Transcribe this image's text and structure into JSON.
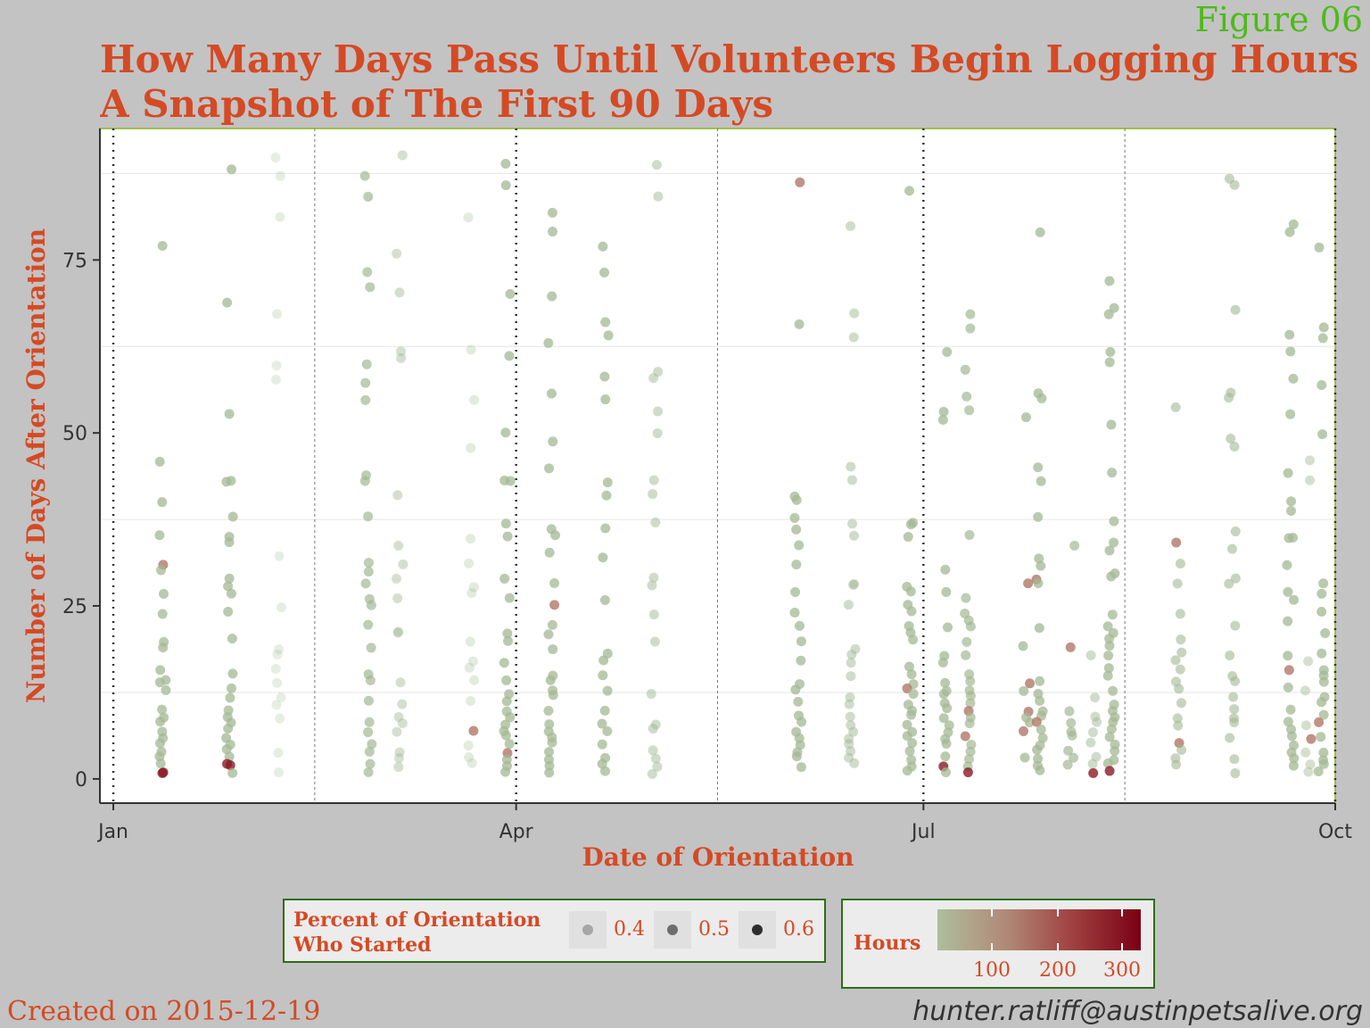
{
  "figure_label": "Figure 06",
  "title_line1": "How Many Days Pass Until Volunteers Begin Logging Hours",
  "title_line2": "A Snapshot of The First 90 Days",
  "footer": {
    "created": "Created on 2015-12-19",
    "email": "hunter.ratliff@austinpetsalive.org"
  },
  "legend_size": {
    "title_line1": "Percent of Orientation",
    "title_line2": "Who Started",
    "labels": [
      "0.4",
      "0.5",
      "0.6"
    ]
  },
  "legend_color": {
    "title": "Hours",
    "labels": [
      "100",
      "200",
      "300"
    ],
    "low_color": "#aebe9c",
    "high_color": "#7a0014"
  },
  "chart_data": {
    "type": "scatter",
    "xlabel": "Date of Orientation",
    "ylabel": "Number of Days After Orientation",
    "x_ticks": [
      "Jan",
      "Apr",
      "Jul",
      "Oct"
    ],
    "x_tick_dates": [
      "2015-01-01",
      "2015-04-01",
      "2015-07-01",
      "2015-10-01"
    ],
    "x_range": [
      "2014-12-29",
      "2015-10-01"
    ],
    "y_ticks": [
      0,
      25,
      50,
      75
    ],
    "y_range": [
      -3.5,
      94
    ],
    "grid": true,
    "month_start_lines": [
      "2015-01-01",
      "2015-04-01",
      "2015-07-01",
      "2015-10-01"
    ],
    "mid_quarter_lines": [
      "2015-02-15",
      "2015-05-16",
      "2015-08-15"
    ],
    "cohorts": [
      {
        "date": "2015-01-12",
        "alpha": 0.75,
        "days": [
          77,
          46,
          40,
          35,
          31,
          30,
          27,
          24,
          20,
          19,
          16,
          14,
          14,
          13,
          10,
          9,
          8,
          7,
          6,
          5,
          4,
          3,
          2,
          1,
          1
        ],
        "hot": [
          31,
          1
        ]
      },
      {
        "date": "2015-01-27",
        "alpha": 0.75,
        "days": [
          88,
          69,
          53,
          43,
          43,
          38,
          35,
          34,
          29,
          28,
          27,
          24,
          20,
          15,
          13,
          12,
          10,
          9,
          8,
          7,
          6,
          5,
          4,
          3,
          2,
          2,
          1
        ],
        "hot": [
          2
        ]
      },
      {
        "date": "2015-02-07",
        "alpha": 0.25,
        "days": [
          90,
          87,
          81,
          67,
          60,
          58,
          32,
          25,
          19,
          18,
          16,
          14,
          12,
          11,
          9,
          4,
          1
        ],
        "hot": []
      },
      {
        "date": "2015-02-27",
        "alpha": 0.7,
        "days": [
          87,
          84,
          73,
          71,
          60,
          57,
          55,
          44,
          43,
          38,
          31,
          30,
          28,
          26,
          25,
          22,
          19,
          15,
          14,
          11,
          8,
          7,
          5,
          4,
          2,
          1
        ],
        "hot": []
      },
      {
        "date": "2015-03-06",
        "alpha": 0.45,
        "days": [
          90,
          76,
          70,
          62,
          61,
          41,
          34,
          31,
          29,
          26,
          21,
          21,
          14,
          11,
          9,
          8,
          7,
          4,
          3,
          2
        ],
        "hot": []
      },
      {
        "date": "2015-03-22",
        "alpha": 0.3,
        "days": [
          81,
          62,
          55,
          48,
          35,
          31,
          28,
          27,
          20,
          17,
          16,
          14,
          11,
          7,
          5,
          3,
          2
        ],
        "hot": [
          7
        ]
      },
      {
        "date": "2015-03-30",
        "alpha": 0.75,
        "days": [
          89,
          86,
          70,
          61,
          50,
          43,
          43,
          37,
          35,
          29,
          26,
          21,
          20,
          17,
          14,
          12,
          11,
          10,
          9,
          8,
          7,
          6,
          5,
          4,
          3,
          2,
          1
        ],
        "hot": [
          4
        ]
      },
      {
        "date": "2015-04-09",
        "alpha": 0.75,
        "days": [
          82,
          79,
          70,
          63,
          56,
          49,
          45,
          36,
          35,
          33,
          28,
          25,
          22,
          21,
          19,
          15,
          14,
          13,
          12,
          10,
          8,
          7,
          6,
          5,
          4,
          3,
          2,
          1
        ],
        "hot": [
          25
        ]
      },
      {
        "date": "2015-04-21",
        "alpha": 0.75,
        "days": [
          77,
          73,
          66,
          64,
          58,
          55,
          43,
          41,
          36,
          32,
          26,
          18,
          17,
          15,
          13,
          10,
          8,
          7,
          5,
          3,
          2,
          1
        ],
        "hot": []
      },
      {
        "date": "2015-05-02",
        "alpha": 0.5,
        "days": [
          89,
          84,
          59,
          58,
          53,
          50,
          43,
          41,
          37,
          29,
          28,
          24,
          20,
          12,
          8,
          7,
          4,
          3,
          2,
          1
        ],
        "hot": []
      },
      {
        "date": "2015-06-03",
        "alpha": 0.75,
        "days": [
          86,
          66,
          41,
          40,
          38,
          36,
          34,
          31,
          27,
          24,
          22,
          20,
          17,
          14,
          13,
          11,
          9,
          8,
          7,
          6,
          5,
          4,
          3,
          2
        ],
        "hot": [
          86
        ]
      },
      {
        "date": "2015-06-15",
        "alpha": 0.5,
        "days": [
          80,
          67,
          64,
          45,
          43,
          37,
          35,
          28,
          28,
          25,
          19,
          18,
          17,
          15,
          12,
          11,
          9,
          8,
          7,
          6,
          5,
          4,
          3,
          2
        ],
        "hot": []
      },
      {
        "date": "2015-06-28",
        "alpha": 0.75,
        "days": [
          85,
          37,
          37,
          35,
          28,
          27,
          25,
          24,
          22,
          21,
          20,
          16,
          15,
          14,
          13,
          12,
          11,
          10,
          9,
          8,
          7,
          6,
          5,
          4,
          3,
          2,
          1
        ],
        "hot": [
          13
        ]
      },
      {
        "date": "2015-07-06",
        "alpha": 0.75,
        "days": [
          62,
          53,
          52,
          30,
          27,
          22,
          18,
          17,
          14,
          13,
          12,
          11,
          10,
          9,
          8,
          7,
          6,
          5,
          3,
          2,
          1
        ],
        "hot": [
          2
        ]
      },
      {
        "date": "2015-07-11",
        "alpha": 0.7,
        "days": [
          67,
          65,
          59,
          55,
          53,
          35,
          26,
          24,
          23,
          22,
          20,
          18,
          15,
          14,
          13,
          12,
          11,
          10,
          9,
          8,
          6,
          5,
          4,
          3,
          2,
          1
        ],
        "hot": [
          10,
          6,
          1
        ]
      },
      {
        "date": "2015-07-24",
        "alpha": 0.75,
        "days": [
          52,
          28,
          19,
          14,
          13,
          10,
          9,
          8,
          7,
          3
        ],
        "hot": [
          28,
          14,
          10,
          7
        ]
      },
      {
        "date": "2015-07-27",
        "alpha": 0.75,
        "days": [
          79,
          56,
          55,
          45,
          43,
          38,
          32,
          31,
          29,
          28,
          22,
          14,
          12,
          11,
          10,
          9,
          8,
          7,
          6,
          5,
          4,
          3,
          2,
          1
        ],
        "hot": [
          29,
          8
        ]
      },
      {
        "date": "2015-08-03",
        "alpha": 0.7,
        "days": [
          34,
          19,
          10,
          8,
          7,
          6,
          4,
          3,
          2
        ],
        "hot": [
          19
        ]
      },
      {
        "date": "2015-08-08",
        "alpha": 0.5,
        "days": [
          18,
          12,
          9,
          8,
          7,
          5,
          3,
          2,
          1
        ],
        "hot": [
          1
        ]
      },
      {
        "date": "2015-08-12",
        "alpha": 0.75,
        "days": [
          72,
          68,
          67,
          62,
          60,
          51,
          44,
          37,
          34,
          33,
          30,
          29,
          24,
          22,
          21,
          20,
          19,
          18,
          16,
          15,
          13,
          11,
          10,
          9,
          8,
          7,
          6,
          5,
          4,
          3,
          2,
          1
        ],
        "hot": [
          1
        ]
      },
      {
        "date": "2015-08-27",
        "alpha": 0.6,
        "days": [
          54,
          34,
          31,
          28,
          24,
          20,
          18,
          17,
          16,
          14,
          13,
          11,
          9,
          8,
          5,
          4,
          3,
          2
        ],
        "hot": [
          34,
          5
        ]
      },
      {
        "date": "2015-09-08",
        "alpha": 0.6,
        "days": [
          87,
          86,
          68,
          56,
          55,
          49,
          48,
          36,
          33,
          29,
          28,
          22,
          18,
          15,
          14,
          12,
          10,
          9,
          8,
          6,
          3,
          1
        ],
        "hot": []
      },
      {
        "date": "2015-09-21",
        "alpha": 0.75,
        "days": [
          80,
          79,
          64,
          62,
          58,
          53,
          44,
          40,
          39,
          35,
          35,
          31,
          27,
          26,
          23,
          18,
          16,
          13,
          10,
          8,
          7,
          6,
          5,
          4,
          3,
          2
        ],
        "hot": [
          16
        ]
      },
      {
        "date": "2015-09-25",
        "alpha": 0.45,
        "days": [
          46,
          43,
          17,
          13,
          8,
          6,
          4,
          2,
          1
        ],
        "hot": [
          6
        ]
      },
      {
        "date": "2015-09-28",
        "alpha": 0.75,
        "days": [
          77,
          65,
          64,
          57,
          50,
          28,
          27,
          24,
          21,
          18,
          16,
          15,
          14,
          12,
          11,
          9,
          8,
          6,
          4,
          3,
          2,
          1
        ],
        "hot": [
          8
        ]
      }
    ]
  }
}
